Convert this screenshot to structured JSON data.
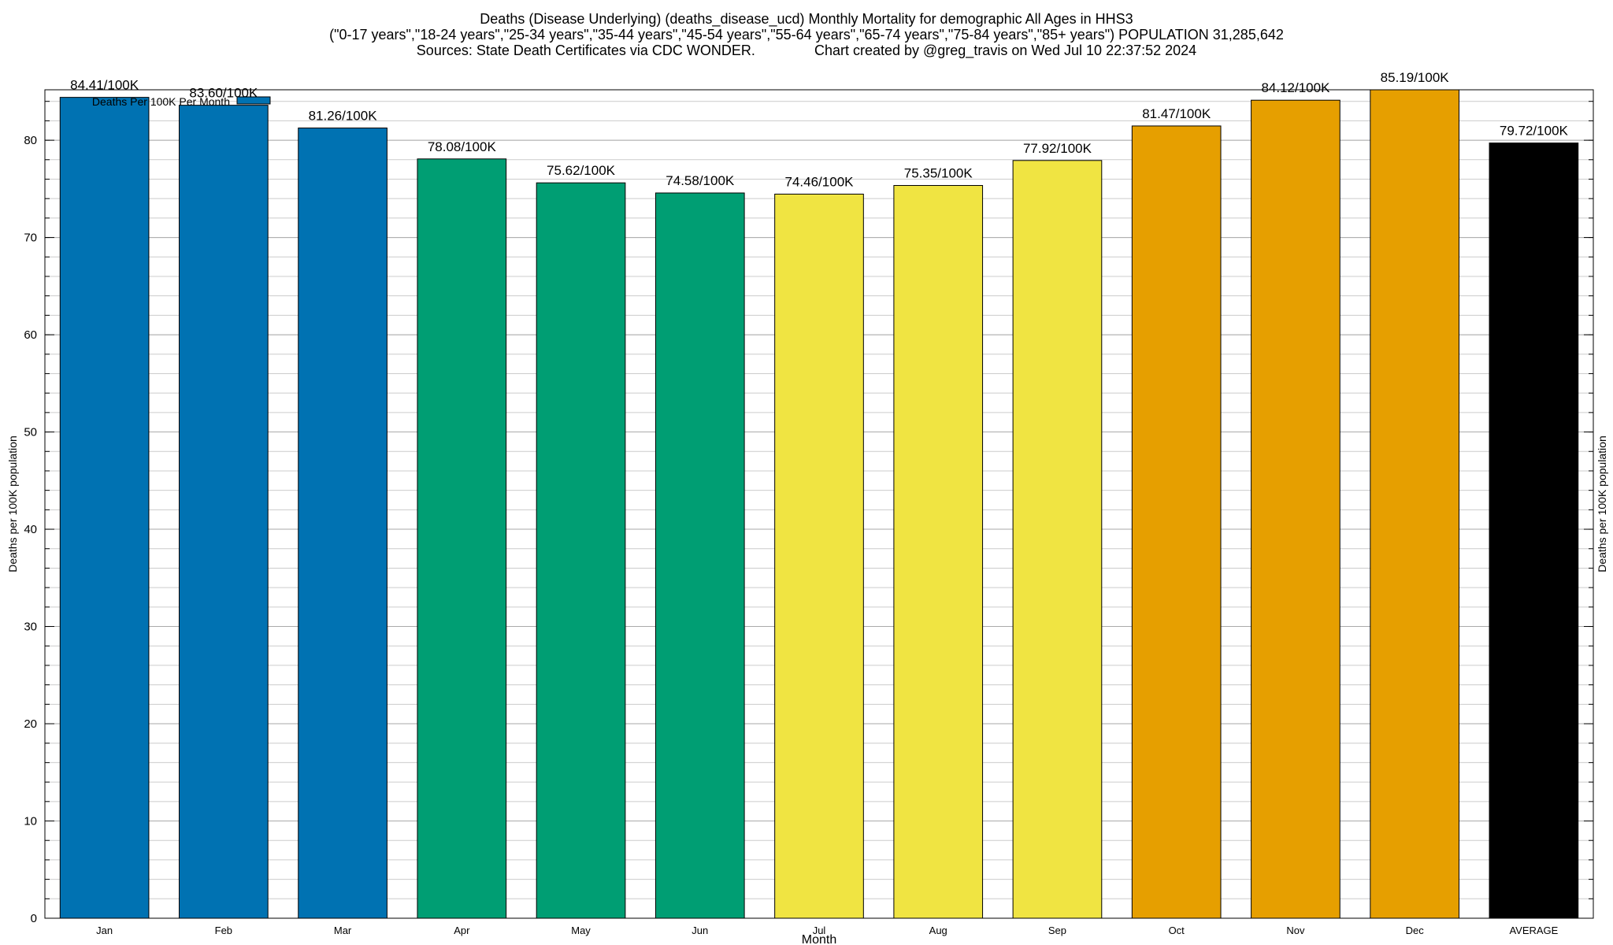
{
  "titles": {
    "line1": "Deaths (Disease Underlying) (deaths_disease_ucd) Monthly Mortality for demographic All Ages in HHS3",
    "line2": "(\"0-17 years\",\"18-24 years\",\"25-34 years\",\"35-44 years\",\"45-54 years\",\"55-64 years\",\"65-74 years\",\"75-84 years\",\"85+ years\") POPULATION 31,285,642",
    "line3": "Sources: State Death Certificates via CDC WONDER.               Chart created by @greg_travis on Wed Jul 10 22:37:52 2024"
  },
  "chart_data": {
    "type": "bar",
    "xlabel": "Month",
    "ylabel": "Deaths per 100K population",
    "ylabel_right": "Deaths per 100K population",
    "ylim": [
      0,
      85.19
    ],
    "yticks": [
      0,
      10,
      20,
      30,
      40,
      50,
      60,
      70,
      80
    ],
    "minor_tick_step": 2,
    "grid": true,
    "legend": {
      "label": "Deaths Per 100K Per Month",
      "color": "#0072b2",
      "position": "top-left"
    },
    "categories": [
      "Jan",
      "Feb",
      "Mar",
      "Apr",
      "May",
      "Jun",
      "Jul",
      "Aug",
      "Sep",
      "Oct",
      "Nov",
      "Dec",
      "AVERAGE"
    ],
    "values": [
      84.41,
      83.6,
      81.26,
      78.08,
      75.62,
      74.58,
      74.46,
      75.35,
      77.92,
      81.47,
      84.12,
      85.19,
      79.72
    ],
    "data_labels": [
      "84.41/100K",
      "83.60/100K",
      "81.26/100K",
      "78.08/100K",
      "75.62/100K",
      "74.58/100K",
      "74.46/100K",
      "75.35/100K",
      "77.92/100K",
      "81.47/100K",
      "84.12/100K",
      "85.19/100K",
      "79.72/100K"
    ],
    "colors": [
      "#0072b2",
      "#0072b2",
      "#0072b2",
      "#009e73",
      "#009e73",
      "#009e73",
      "#f0e442",
      "#f0e442",
      "#f0e442",
      "#e69f00",
      "#e69f00",
      "#e69f00",
      "#000000"
    ]
  }
}
